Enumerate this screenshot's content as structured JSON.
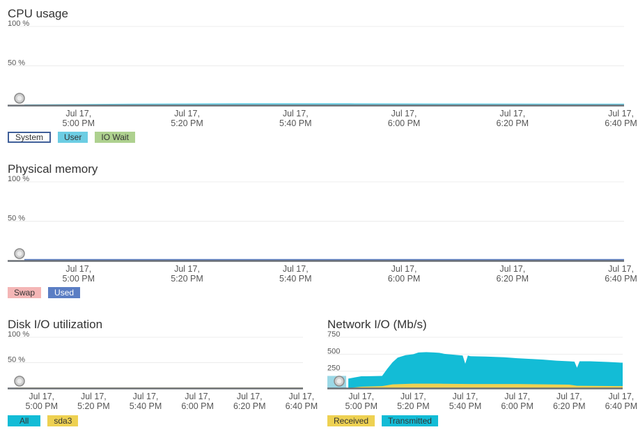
{
  "chart_data": [
    {
      "type": "area",
      "title": "CPU usage",
      "y_ticks": [
        "100 %",
        "50 %"
      ],
      "ylim": [
        0,
        100
      ],
      "x_ticks": [
        {
          "line1": "Jul 17,",
          "line2": "5:00 PM"
        },
        {
          "line1": "Jul 17,",
          "line2": "5:20 PM"
        },
        {
          "line1": "Jul 17,",
          "line2": "5:40 PM"
        },
        {
          "line1": "Jul 17,",
          "line2": "6:00 PM"
        },
        {
          "line1": "Jul 17,",
          "line2": "6:20 PM"
        },
        {
          "line1": "Jul 17,",
          "line2": "6:40 PM"
        }
      ],
      "grid": true,
      "legend_position": "bottom-left",
      "series": [
        {
          "name": "System",
          "color": "#3f5f99",
          "values": [
            0.3,
            0.3,
            0.3,
            0.3,
            0.3,
            0.3,
            0.3
          ]
        },
        {
          "name": "User",
          "color": "#6ccde3",
          "values": [
            1.0,
            2.0,
            2.5,
            2.5,
            2.2,
            2.0,
            2.0
          ]
        },
        {
          "name": "IO Wait",
          "color": "#aed18f",
          "values": [
            0,
            0,
            0,
            0,
            0,
            0,
            0
          ]
        }
      ]
    },
    {
      "type": "area",
      "title": "Physical memory",
      "y_ticks": [
        "100 %",
        "50 %"
      ],
      "ylim": [
        0,
        100
      ],
      "x_ticks": [
        {
          "line1": "Jul 17,",
          "line2": "5:00 PM"
        },
        {
          "line1": "Jul 17,",
          "line2": "5:20 PM"
        },
        {
          "line1": "Jul 17,",
          "line2": "5:40 PM"
        },
        {
          "line1": "Jul 17,",
          "line2": "6:00 PM"
        },
        {
          "line1": "Jul 17,",
          "line2": "6:20 PM"
        },
        {
          "line1": "Jul 17,",
          "line2": "6:40 PM"
        }
      ],
      "grid": true,
      "legend_position": "bottom-left",
      "series": [
        {
          "name": "Swap",
          "color": "#f4b6b6",
          "values": [
            0,
            0,
            0,
            0,
            0,
            0,
            0
          ]
        },
        {
          "name": "Used",
          "color": "#5b7ec4",
          "values": [
            2,
            2,
            2,
            2,
            2,
            2,
            2
          ]
        }
      ]
    },
    {
      "type": "area",
      "title": "Disk I/O utilization",
      "y_ticks": [
        "100 %",
        "50 %"
      ],
      "ylim": [
        0,
        100
      ],
      "x_ticks": [
        {
          "line1": "Jul 17,",
          "line2": "5:00 PM"
        },
        {
          "line1": "Jul 17,",
          "line2": "5:20 PM"
        },
        {
          "line1": "Jul 17,",
          "line2": "5:40 PM"
        },
        {
          "line1": "Jul 17,",
          "line2": "6:00 PM"
        },
        {
          "line1": "Jul 17,",
          "line2": "6:20 PM"
        },
        {
          "line1": "Jul 17,",
          "line2": "6:40 PM"
        }
      ],
      "grid": true,
      "legend_position": "bottom-left",
      "series": [
        {
          "name": "All",
          "color": "#13bcd6",
          "values": [
            0.5,
            0.5,
            0.5,
            0.5,
            0.5,
            0.5,
            0.5
          ]
        },
        {
          "name": "sda3",
          "color": "#eed152",
          "values": [
            1.0,
            1.0,
            1.0,
            1.0,
            1.0,
            1.0,
            1.0
          ]
        }
      ]
    },
    {
      "type": "area",
      "title": "Network I/O (Mb/s)",
      "y_ticks": [
        "750",
        "500",
        "250"
      ],
      "ylim": [
        0,
        750
      ],
      "x_ticks": [
        {
          "line1": "Jul 17,",
          "line2": "5:00 PM"
        },
        {
          "line1": "Jul 17,",
          "line2": "5:20 PM"
        },
        {
          "line1": "Jul 17,",
          "line2": "5:40 PM"
        },
        {
          "line1": "Jul 17,",
          "line2": "6:00 PM"
        },
        {
          "line1": "Jul 17,",
          "line2": "6:20 PM"
        },
        {
          "line1": "Jul 17,",
          "line2": "6:40 PM"
        }
      ],
      "grid": true,
      "legend_position": "bottom-left",
      "series": [
        {
          "name": "Received",
          "color": "#eed152",
          "x_minutes": [
            -5,
            0,
            8,
            12,
            20,
            30,
            42,
            60,
            80,
            83,
            100,
            106
          ],
          "values": [
            0,
            20,
            30,
            55,
            65,
            65,
            60,
            60,
            52,
            35,
            30,
            30
          ]
        },
        {
          "name": "Transmitted",
          "color": "#13bcd6",
          "x_minutes": [
            -5,
            0,
            2,
            8,
            10,
            12,
            14,
            17,
            20,
            22,
            25,
            28,
            30,
            32,
            36,
            39,
            40,
            41,
            42,
            48,
            55,
            60,
            65,
            70,
            75,
            80,
            82,
            83,
            84,
            88,
            95,
            100,
            103,
            105,
            106
          ],
          "values": [
            140,
            175,
            175,
            180,
            285,
            380,
            450,
            485,
            500,
            525,
            530,
            525,
            520,
            505,
            490,
            480,
            360,
            480,
            470,
            465,
            455,
            440,
            430,
            420,
            405,
            395,
            390,
            300,
            395,
            395,
            385,
            375,
            375,
            370,
            340
          ]
        }
      ]
    }
  ]
}
